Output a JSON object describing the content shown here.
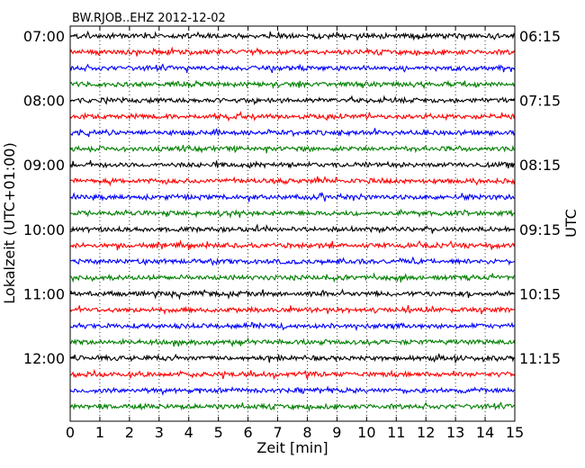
{
  "chart_data": {
    "type": "line",
    "title": "BW.RJOB..EHZ 2012-12-02",
    "xlabel": "Zeit  [min]",
    "ylabel_left": "Lokalzeit (UTC+01:00)",
    "ylabel_right": "UTC",
    "xlim": [
      0,
      15
    ],
    "x_ticks": [
      0,
      1,
      2,
      3,
      4,
      5,
      6,
      7,
      8,
      9,
      10,
      11,
      12,
      13,
      14,
      15
    ],
    "x_grid": true,
    "grid_style": "dotted",
    "trace_count": 24,
    "trace_interval_min": 15,
    "trace_colors": [
      "#000000",
      "#ff0000",
      "#0000ff",
      "#008000"
    ],
    "left_hour_labels": [
      {
        "text": "07:00",
        "trace_index": 0
      },
      {
        "text": "08:00",
        "trace_index": 4
      },
      {
        "text": "09:00",
        "trace_index": 8
      },
      {
        "text": "10:00",
        "trace_index": 12
      },
      {
        "text": "11:00",
        "trace_index": 16
      },
      {
        "text": "12:00",
        "trace_index": 20
      }
    ],
    "right_utc_labels": [
      {
        "text": "06:15",
        "trace_index": 0
      },
      {
        "text": "07:15",
        "trace_index": 4
      },
      {
        "text": "08:15",
        "trace_index": 8
      },
      {
        "text": "09:15",
        "trace_index": 12
      },
      {
        "text": "10:15",
        "trace_index": 16
      },
      {
        "text": "11:15",
        "trace_index": 20
      }
    ]
  }
}
